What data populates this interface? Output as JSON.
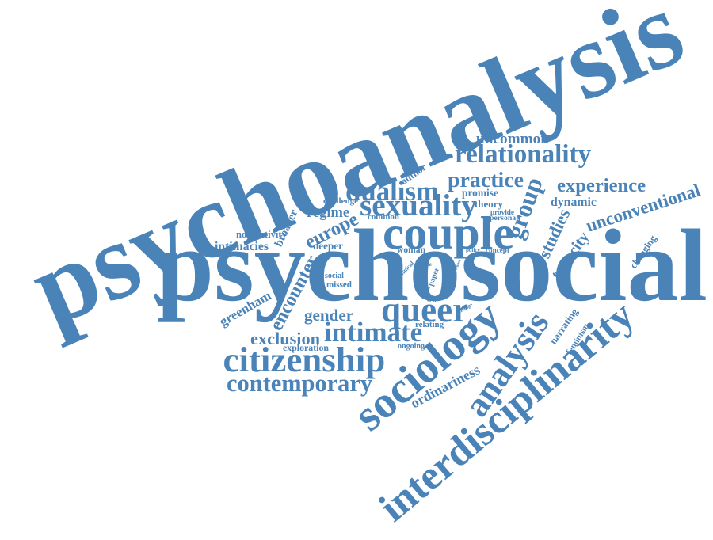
{
  "colors": {
    "word": "#4a83b8",
    "background": "#ffffff"
  },
  "words": [
    {
      "text": "psychoanalysis"
    },
    {
      "text": "psychosocial"
    },
    {
      "text": "interdisciplinarity"
    },
    {
      "text": "sociology"
    },
    {
      "text": "analysis"
    },
    {
      "text": "couple"
    },
    {
      "text": "citizenship"
    },
    {
      "text": "relationality"
    },
    {
      "text": "queer"
    },
    {
      "text": "sexuality"
    },
    {
      "text": "group"
    },
    {
      "text": "practice"
    },
    {
      "text": "intimate"
    },
    {
      "text": "contemporary"
    },
    {
      "text": "dualism"
    },
    {
      "text": "experience"
    },
    {
      "text": "unconventional"
    },
    {
      "text": "europe"
    },
    {
      "text": "encounter"
    },
    {
      "text": "gender"
    },
    {
      "text": "studies"
    },
    {
      "text": "tenacity"
    },
    {
      "text": "uncommon"
    },
    {
      "text": "regime"
    },
    {
      "text": "exclusion"
    },
    {
      "text": "dynamic"
    },
    {
      "text": "ordinariness"
    },
    {
      "text": "narrating"
    },
    {
      "text": "feminism"
    },
    {
      "text": "greenham"
    },
    {
      "text": "intimacies"
    },
    {
      "text": "normativity"
    },
    {
      "text": "broader"
    },
    {
      "text": "deeper"
    },
    {
      "text": "changing"
    },
    {
      "text": "theory"
    },
    {
      "text": "challenge"
    },
    {
      "text": "author"
    },
    {
      "text": "promise"
    },
    {
      "text": "common"
    },
    {
      "text": "exploration"
    },
    {
      "text": "social"
    },
    {
      "text": "missed"
    },
    {
      "text": "woman"
    },
    {
      "text": "concept"
    },
    {
      "text": "provide"
    },
    {
      "text": "personal"
    },
    {
      "text": "relating"
    },
    {
      "text": "ongoing"
    },
    {
      "text": "paper"
    },
    {
      "text": "life"
    },
    {
      "text": "clinical"
    },
    {
      "text": "policy"
    },
    {
      "text": "change"
    },
    {
      "text": "book"
    },
    {
      "text": "whose"
    },
    {
      "text": "self"
    }
  ]
}
